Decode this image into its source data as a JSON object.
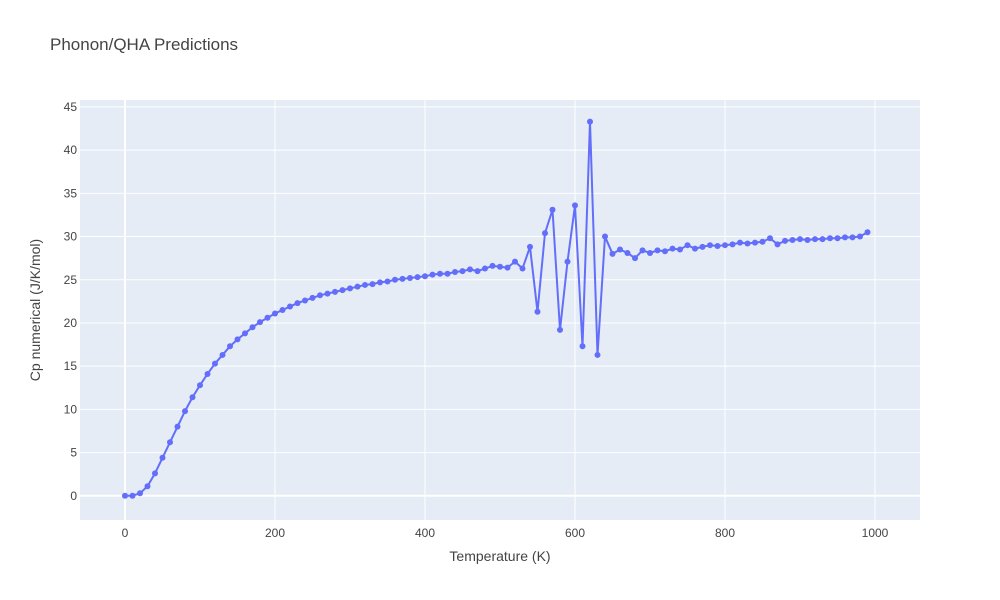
{
  "chart_data": {
    "type": "line",
    "title": "Phonon/QHA Predictions",
    "xlabel": "Temperature (K)",
    "ylabel": "Cp numerical (J/K/mol)",
    "xlim": [
      -60,
      1060
    ],
    "ylim": [
      -2.8,
      45.8
    ],
    "xticks": [
      0,
      200,
      400,
      600,
      800,
      1000
    ],
    "yticks": [
      0,
      5,
      10,
      15,
      20,
      25,
      30,
      35,
      40,
      45
    ],
    "grid": true,
    "legend": "none",
    "colors": {
      "plot_bg": "#E5ECF6",
      "grid": "#ffffff",
      "series": "#636EFA"
    },
    "series": [
      {
        "mode": "lines+markers",
        "x": [
          0,
          10,
          20,
          30,
          40,
          50,
          60,
          70,
          80,
          90,
          100,
          110,
          120,
          130,
          140,
          150,
          160,
          170,
          180,
          190,
          200,
          210,
          220,
          230,
          240,
          250,
          260,
          270,
          280,
          290,
          300,
          310,
          320,
          330,
          340,
          350,
          360,
          370,
          380,
          390,
          400,
          410,
          420,
          430,
          440,
          450,
          460,
          470,
          480,
          490,
          500,
          510,
          520,
          530,
          540,
          550,
          560,
          570,
          580,
          590,
          600,
          610,
          620,
          630,
          640,
          650,
          660,
          670,
          680,
          690,
          700,
          710,
          720,
          730,
          740,
          750,
          760,
          770,
          780,
          790,
          800,
          810,
          820,
          830,
          840,
          850,
          860,
          870,
          880,
          890,
          900,
          910,
          920,
          930,
          940,
          950,
          960,
          970,
          980,
          990
        ],
        "y": [
          0.0,
          0.0,
          0.3,
          1.1,
          2.6,
          4.4,
          6.2,
          8.0,
          9.8,
          11.4,
          12.8,
          14.1,
          15.3,
          16.3,
          17.3,
          18.1,
          18.8,
          19.5,
          20.1,
          20.6,
          21.1,
          21.5,
          21.9,
          22.3,
          22.6,
          22.9,
          23.2,
          23.4,
          23.6,
          23.8,
          24.0,
          24.2,
          24.4,
          24.5,
          24.7,
          24.8,
          25.0,
          25.1,
          25.2,
          25.3,
          25.4,
          25.6,
          25.7,
          25.7,
          25.9,
          26.0,
          26.2,
          26.0,
          26.3,
          26.6,
          26.5,
          26.4,
          27.1,
          26.3,
          28.8,
          21.3,
          30.4,
          33.1,
          19.2,
          27.1,
          33.6,
          17.3,
          43.3,
          16.3,
          30.0,
          28.0,
          28.5,
          28.1,
          27.5,
          28.4,
          28.1,
          28.4,
          28.3,
          28.6,
          28.5,
          29.0,
          28.6,
          28.8,
          29.0,
          28.9,
          29.0,
          29.1,
          29.3,
          29.2,
          29.3,
          29.4,
          29.8,
          29.1,
          29.5,
          29.6,
          29.7,
          29.6,
          29.7,
          29.7,
          29.8,
          29.8,
          29.9,
          29.9,
          30.0,
          30.5
        ]
      }
    ]
  }
}
